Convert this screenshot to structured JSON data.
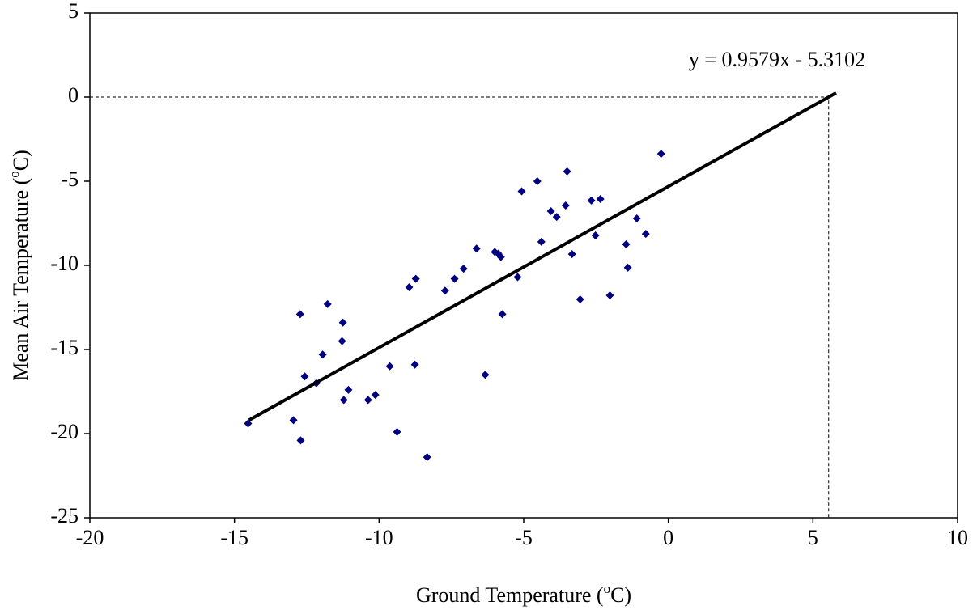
{
  "chart_data": {
    "type": "scatter",
    "xlabel": {
      "text": "Ground Temperature (",
      "sup": "o",
      "end": "C)"
    },
    "ylabel": {
      "text": "Mean Air Temperature (",
      "sup": "o",
      "end": "C)"
    },
    "xlim": [
      -20,
      10
    ],
    "xticks": [
      -20,
      -15,
      -10,
      -5,
      0,
      5,
      10
    ],
    "ylim": [
      -25,
      5
    ],
    "yticks": [
      -25,
      -20,
      -15,
      -10,
      -5,
      0,
      5
    ],
    "grid": false,
    "series": [
      {
        "color": "#000080",
        "x": [
          -14.53,
          -12.96,
          -12.71,
          -12.73,
          -12.57,
          -12.17,
          -11.95,
          -11.78,
          -11.25,
          -11.28,
          -11.22,
          -11.06,
          -10.38,
          -10.13,
          -9.63,
          -9.38,
          -8.96,
          -8.73,
          -8.76,
          -8.34,
          -7.72,
          -7.39,
          -7.08,
          -6.63,
          -6.33,
          -6.0,
          -5.88,
          -5.79,
          -5.74,
          -5.21,
          -5.07,
          -4.53,
          -4.39,
          -4.06,
          -3.86,
          -3.5,
          -3.55,
          -3.33,
          -3.05,
          -2.66,
          -2.52,
          -2.35,
          -2.02,
          -1.46,
          -1.4,
          -1.09,
          -0.78,
          -0.25
        ],
        "values": [
          -19.4,
          -19.2,
          -20.4,
          -12.9,
          -16.6,
          -17.0,
          -15.3,
          -12.3,
          -13.4,
          -14.5,
          -18.0,
          -17.4,
          -18.0,
          -17.7,
          -16.0,
          -19.9,
          -11.3,
          -10.8,
          -15.9,
          -21.4,
          -11.5,
          -10.8,
          -10.2,
          -9.0,
          -16.5,
          -9.2,
          -9.3,
          -9.5,
          -12.9,
          -10.7,
          -5.6,
          -5.0,
          -8.6,
          -6.78,
          -7.12,
          -4.42,
          -6.44,
          -9.33,
          -12.02,
          -6.15,
          -8.22,
          -6.06,
          -11.78,
          -8.75,
          -10.14,
          -7.21,
          -8.13,
          -3.37
        ]
      }
    ],
    "trendline": {
      "label": "y = 0.9579x - 5.3102",
      "slope": 0.9579,
      "intercept": -5.3102,
      "x": [
        -14.5,
        5.8
      ]
    }
  }
}
